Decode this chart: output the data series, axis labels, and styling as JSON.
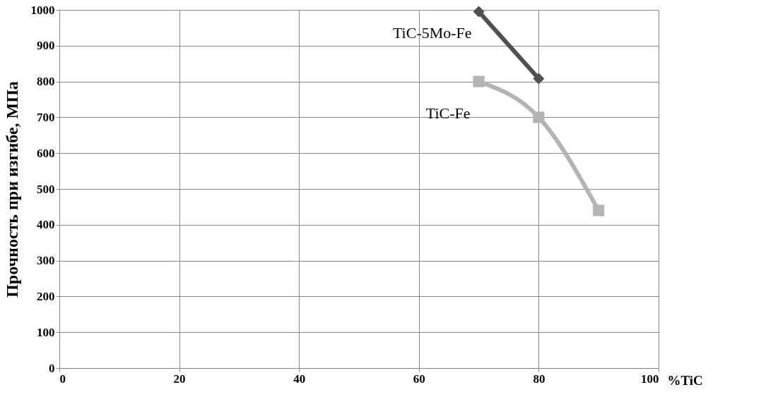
{
  "chart_data": {
    "type": "line",
    "ylabel": "Прочность при изгибе, МПа",
    "xlabel": "%TiC",
    "xlim": [
      0,
      100
    ],
    "xticks": [
      0,
      20,
      40,
      60,
      80,
      100
    ],
    "ylim": [
      0,
      1000
    ],
    "yticks": [
      0,
      100,
      200,
      300,
      400,
      500,
      600,
      700,
      800,
      900,
      1000
    ],
    "grid": true,
    "series": [
      {
        "name": "TiC-5Mo-Fe",
        "color": "#505050",
        "marker": "diamond",
        "x": [
          70,
          80
        ],
        "values": [
          995,
          808
        ]
      },
      {
        "name": "TiC-Fe",
        "color": "#b4b4b4",
        "marker": "square",
        "x": [
          70,
          80,
          90
        ],
        "values": [
          800,
          700,
          440
        ]
      }
    ]
  }
}
